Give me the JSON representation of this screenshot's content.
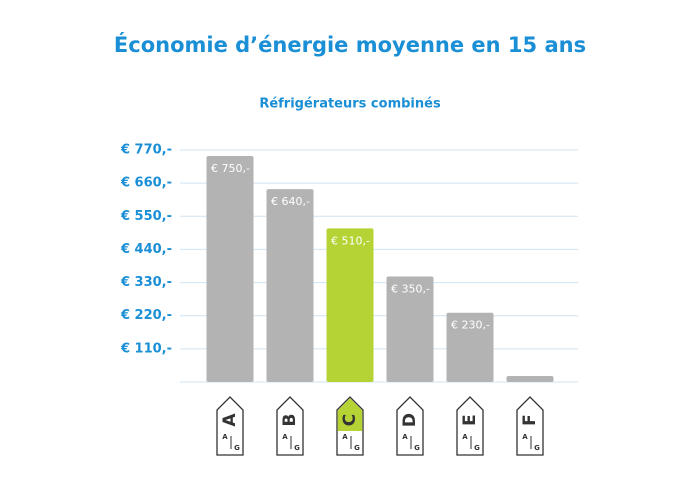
{
  "chart_data": {
    "type": "bar",
    "title": "Économie d’énergie moyenne en 15 ans",
    "subtitle": "Réfrigérateurs combinés",
    "categories": [
      "A",
      "B",
      "C",
      "D",
      "E",
      "F"
    ],
    "values": [
      750,
      640,
      510,
      350,
      230,
      20
    ],
    "value_labels": [
      "€ 750,-",
      "€ 640,-",
      "€ 510,-",
      "€ 350,-",
      "€ 230,-",
      null
    ],
    "colors": [
      "#b3b3b3",
      "#b3b3b3",
      "#b5d334",
      "#b3b3b3",
      "#b3b3b3",
      "#b3b3b3"
    ],
    "scale_labels": [
      "A",
      "G"
    ],
    "ylim": [
      0,
      770
    ],
    "yticks": [
      {
        "value": 110,
        "label": "€ 110,-"
      },
      {
        "value": 220,
        "label": "€ 220,-"
      },
      {
        "value": 330,
        "label": "€ 330,-"
      },
      {
        "value": 440,
        "label": "€ 440,-"
      },
      {
        "value": 550,
        "label": "€ 550,-"
      },
      {
        "value": 660,
        "label": "€ 660,-"
      },
      {
        "value": 770,
        "label": "€ 770,-"
      }
    ],
    "grid": true
  }
}
